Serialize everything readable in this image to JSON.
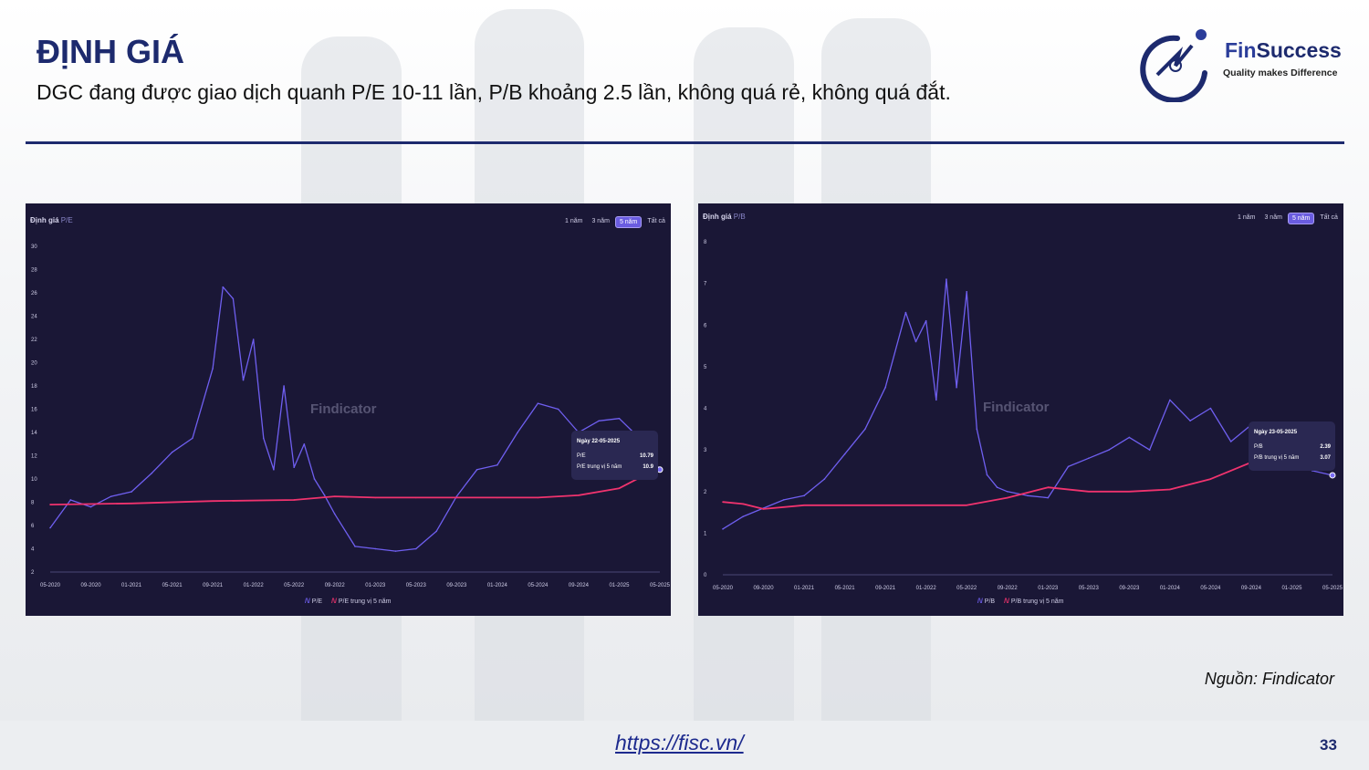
{
  "slide": {
    "title": "ĐỊNH GIÁ",
    "subtitle": "DGC đang được giao dịch quanh P/E 10-11 lần, P/B khoảng 2.5 lần, không quá rẻ, không quá đắt.",
    "source": "Nguồn: Findicator",
    "url": "https://fisc.vn/",
    "page_number": "33"
  },
  "logo": {
    "brand_a": "Fin",
    "brand_b": "Success",
    "tagline": "Quality makes Difference"
  },
  "range_buttons": [
    "1 năm",
    "3 năm",
    "5 năm",
    "Tất cả"
  ],
  "watermark": "Findicator",
  "colors": {
    "series": "#6f5ff0",
    "median": "#f0336e",
    "panel_bg": "#1a1736",
    "accent": "#1d2a6e"
  },
  "chart_data": [
    {
      "type": "line",
      "title": "Định giá",
      "title_tag": "P/E",
      "active_range": "5 năm",
      "x_ticks": [
        "05-2020",
        "09-2020",
        "01-2021",
        "05-2021",
        "09-2021",
        "01-2022",
        "05-2022",
        "09-2022",
        "01-2023",
        "05-2023",
        "09-2023",
        "01-2024",
        "05-2024",
        "09-2024",
        "01-2025",
        "05-2025"
      ],
      "y_ticks": [
        2,
        4,
        6,
        8,
        10,
        12,
        14,
        16,
        18,
        20,
        22,
        24,
        26,
        28,
        30
      ],
      "ylim": [
        2,
        30
      ],
      "series": [
        {
          "name": "P/E",
          "x": [
            "05-2020",
            "07-2020",
            "09-2020",
            "11-2020",
            "01-2021",
            "03-2021",
            "05-2021",
            "07-2021",
            "09-2021",
            "10-2021",
            "11-2021",
            "12-2021",
            "01-2022",
            "02-2022",
            "03-2022",
            "04-2022",
            "05-2022",
            "06-2022",
            "07-2022",
            "08-2022",
            "09-2022",
            "11-2022",
            "01-2023",
            "03-2023",
            "05-2023",
            "07-2023",
            "09-2023",
            "11-2023",
            "01-2024",
            "03-2024",
            "05-2024",
            "07-2024",
            "09-2024",
            "11-2024",
            "01-2025",
            "03-2025",
            "05-2025"
          ],
          "values": [
            5.8,
            8.2,
            7.6,
            8.5,
            8.9,
            10.5,
            12.3,
            13.5,
            19.5,
            26.5,
            25.5,
            18.5,
            22,
            13.5,
            10.8,
            18,
            11,
            13,
            10,
            8.6,
            7,
            4.2,
            4,
            3.8,
            4,
            5.5,
            8.5,
            10.8,
            11.2,
            14,
            16.5,
            16,
            14,
            15,
            15.2,
            13.5,
            10.8
          ]
        },
        {
          "name": "P/E trung vị 5 năm",
          "x": [
            "05-2020",
            "01-2021",
            "09-2021",
            "05-2022",
            "09-2022",
            "01-2023",
            "05-2023",
            "09-2023",
            "01-2024",
            "05-2024",
            "09-2024",
            "01-2025",
            "03-2025",
            "05-2025"
          ],
          "values": [
            7.8,
            7.9,
            8.1,
            8.2,
            8.5,
            8.4,
            8.4,
            8.4,
            8.4,
            8.4,
            8.6,
            9.2,
            10.1,
            10.9
          ]
        }
      ],
      "tooltip": {
        "date": "Ngày 22-05-2025",
        "rows": [
          {
            "label": "P/E",
            "value": "10.79"
          },
          {
            "label": "P/E trung vị 5 năm",
            "value": "10.9"
          }
        ]
      },
      "legend": [
        "P/E",
        "P/E trung vị 5 năm"
      ]
    },
    {
      "type": "line",
      "title": "Định giá",
      "title_tag": "P/B",
      "active_range": "5 năm",
      "x_ticks": [
        "05-2020",
        "09-2020",
        "01-2021",
        "05-2021",
        "09-2021",
        "01-2022",
        "05-2022",
        "09-2022",
        "01-2023",
        "05-2023",
        "09-2023",
        "01-2024",
        "05-2024",
        "09-2024",
        "01-2025",
        "05-2025"
      ],
      "y_ticks": [
        0,
        1,
        2,
        3,
        4,
        5,
        6,
        7,
        8
      ],
      "ylim": [
        0,
        8
      ],
      "series": [
        {
          "name": "P/B",
          "x": [
            "05-2020",
            "07-2020",
            "09-2020",
            "11-2020",
            "01-2021",
            "03-2021",
            "05-2021",
            "07-2021",
            "09-2021",
            "11-2021",
            "12-2021",
            "01-2022",
            "02-2022",
            "03-2022",
            "04-2022",
            "05-2022",
            "06-2022",
            "07-2022",
            "08-2022",
            "09-2022",
            "11-2022",
            "01-2023",
            "03-2023",
            "05-2023",
            "07-2023",
            "09-2023",
            "11-2023",
            "01-2024",
            "03-2024",
            "05-2024",
            "07-2024",
            "09-2024",
            "11-2024",
            "01-2025",
            "03-2025",
            "05-2025"
          ],
          "values": [
            1.1,
            1.4,
            1.6,
            1.8,
            1.9,
            2.3,
            2.9,
            3.5,
            4.5,
            6.3,
            5.6,
            6.1,
            4.2,
            7.1,
            4.5,
            6.8,
            3.5,
            2.4,
            2.1,
            2.0,
            1.9,
            1.85,
            2.6,
            2.8,
            3.0,
            3.3,
            3.0,
            4.2,
            3.7,
            4.0,
            3.2,
            3.6,
            3.5,
            3.3,
            2.5,
            2.39
          ]
        },
        {
          "name": "P/B trung vị 5 năm",
          "x": [
            "05-2020",
            "07-2020",
            "09-2020",
            "01-2021",
            "05-2021",
            "09-2021",
            "01-2022",
            "05-2022",
            "09-2022",
            "01-2023",
            "05-2023",
            "09-2023",
            "01-2024",
            "05-2024",
            "09-2024",
            "01-2025",
            "05-2025"
          ],
          "values": [
            1.75,
            1.7,
            1.58,
            1.67,
            1.67,
            1.67,
            1.67,
            1.67,
            1.85,
            2.1,
            2.0,
            2.0,
            2.05,
            2.3,
            2.7,
            2.9,
            3.07
          ]
        }
      ],
      "tooltip": {
        "date": "Ngày 23-05-2025",
        "rows": [
          {
            "label": "P/B",
            "value": "2.39"
          },
          {
            "label": "P/B trung vị 5 năm",
            "value": "3.07"
          }
        ]
      },
      "legend": [
        "P/B",
        "P/B trung vị 5 năm"
      ]
    }
  ]
}
